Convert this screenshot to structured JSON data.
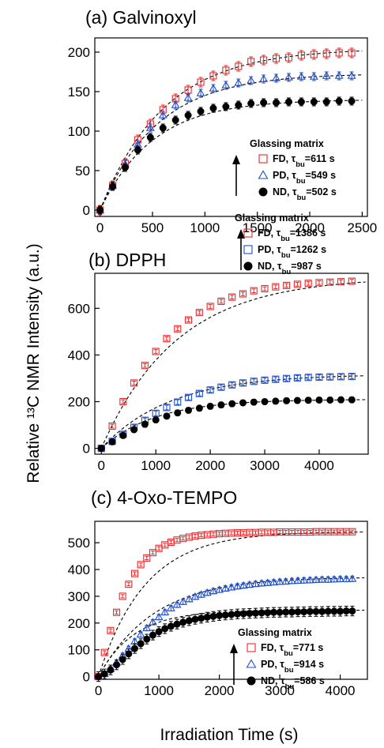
{
  "figure": {
    "ylabel": "Relative ¹³C NMR Intensity (a.u.)",
    "xlabel": "Irradiation Time (s)"
  },
  "colors": {
    "FD": "#e8292b",
    "PD": "#1f4fc9",
    "ND": "#000000",
    "fit": "#000000"
  },
  "chart_data": [
    {
      "type": "scatter",
      "title": "(a) Galvinoxyl",
      "xlim": [
        -50,
        2550
      ],
      "ylim": [
        -8,
        218
      ],
      "xticks": [
        0,
        500,
        1000,
        1500,
        2000,
        2500
      ],
      "yticks": [
        0,
        50,
        100,
        150,
        200
      ],
      "legend_title": "Glassing matrix",
      "series": [
        {
          "name": "FD",
          "tau": "611",
          "marker": "square-open",
          "x": [
            0,
            120,
            240,
            360,
            480,
            600,
            720,
            840,
            960,
            1080,
            1200,
            1320,
            1440,
            1560,
            1680,
            1800,
            1920,
            2040,
            2160,
            2280,
            2400
          ],
          "y": [
            0,
            31,
            59,
            89,
            109,
            127,
            141,
            152,
            162,
            170,
            177,
            182,
            188,
            190,
            192,
            193,
            196,
            197,
            198,
            199,
            199
          ],
          "err": 6,
          "fit": [
            205,
            611
          ]
        },
        {
          "name": "PD",
          "tau": "549",
          "marker": "triangle-open",
          "x": [
            0,
            120,
            240,
            360,
            480,
            600,
            720,
            840,
            960,
            1080,
            1200,
            1320,
            1440,
            1560,
            1680,
            1800,
            1920,
            2040,
            2160,
            2280,
            2400
          ],
          "y": [
            0,
            31,
            58,
            83,
            104,
            120,
            133,
            142,
            148,
            154,
            158,
            161,
            164,
            166,
            167,
            168,
            169,
            169,
            170,
            170,
            170
          ],
          "err": 5,
          "fit": [
            173,
            549
          ]
        },
        {
          "name": "ND",
          "tau": "502",
          "marker": "circle-filled",
          "x": [
            0,
            120,
            240,
            360,
            480,
            600,
            720,
            840,
            960,
            1080,
            1200,
            1320,
            1440,
            1560,
            1680,
            1800,
            1920,
            2040,
            2160,
            2280,
            2400
          ],
          "y": [
            0,
            30,
            54,
            76,
            92,
            104,
            114,
            120,
            125,
            129,
            131,
            133,
            135,
            136,
            136,
            137,
            137,
            137,
            137,
            138,
            138
          ],
          "err": 5,
          "fit": [
            140,
            502
          ]
        }
      ]
    },
    {
      "type": "scatter",
      "title": "(b) DPPH",
      "xlim": [
        -120,
        4900
      ],
      "ylim": [
        -25,
        750
      ],
      "xticks": [
        0,
        1000,
        2000,
        3000,
        4000
      ],
      "yticks": [
        0,
        200,
        400,
        600
      ],
      "legend_title": "Glassing matrix",
      "series": [
        {
          "name": "FD",
          "tau": "1386",
          "marker": "square-open",
          "x": [
            0,
            200,
            400,
            600,
            800,
            1000,
            1200,
            1400,
            1600,
            1800,
            2000,
            2200,
            2400,
            2600,
            2800,
            3000,
            3200,
            3400,
            3600,
            3800,
            4000,
            4200,
            4400,
            4600
          ],
          "y": [
            0,
            95,
            200,
            280,
            355,
            415,
            470,
            512,
            550,
            582,
            608,
            630,
            648,
            662,
            675,
            684,
            692,
            698,
            703,
            707,
            710,
            712,
            714,
            716
          ],
          "err": 8,
          "fit": [
            735,
            1386
          ]
        },
        {
          "name": "PD",
          "tau": "1262",
          "marker": "square-open",
          "x": [
            0,
            200,
            400,
            600,
            800,
            1000,
            1200,
            1400,
            1600,
            1800,
            2000,
            2200,
            2400,
            2600,
            2800,
            3000,
            3200,
            3400,
            3600,
            3800,
            4000,
            4200,
            4400,
            4600
          ],
          "y": [
            0,
            30,
            60,
            90,
            120,
            150,
            175,
            198,
            218,
            235,
            250,
            262,
            272,
            280,
            287,
            292,
            296,
            299,
            302,
            304,
            305,
            306,
            307,
            308
          ],
          "err": 10,
          "fit": [
            318,
            1262
          ]
        },
        {
          "name": "ND",
          "tau": "987",
          "marker": "circle-filled",
          "x": [
            0,
            200,
            400,
            600,
            800,
            1000,
            1200,
            1400,
            1600,
            1800,
            2000,
            2200,
            2400,
            2600,
            2800,
            3000,
            3200,
            3400,
            3600,
            3800,
            4000,
            4200,
            4400,
            4600
          ],
          "y": [
            0,
            28,
            55,
            80,
            103,
            122,
            138,
            152,
            163,
            172,
            180,
            186,
            191,
            195,
            198,
            200,
            202,
            204,
            205,
            206,
            207,
            207,
            208,
            208
          ],
          "err": 12,
          "fit": [
            210,
            987
          ]
        }
      ]
    },
    {
      "type": "scatter",
      "title": "(c) 4-Oxo-TEMPO",
      "xlim": [
        -60,
        4450
      ],
      "ylim": [
        -10,
        580
      ],
      "xticks": [
        0,
        1000,
        2000,
        3000,
        4000
      ],
      "yticks": [
        0,
        100,
        200,
        300,
        400,
        500
      ],
      "legend_title": "Glassing matrix",
      "series": [
        {
          "name": "FD",
          "tau": "771",
          "marker": "square-open",
          "x": [
            0,
            100,
            200,
            300,
            400,
            500,
            600,
            700,
            800,
            900,
            1000,
            1100,
            1200,
            1300,
            1400,
            1500,
            1600,
            1700,
            1800,
            1900,
            2000,
            2100,
            2200,
            2300,
            2400,
            2500,
            2600,
            2700,
            2800,
            2900,
            3000,
            3100,
            3200,
            3300,
            3400,
            3500,
            3600,
            3700,
            3800,
            3900,
            4000,
            4100,
            4200
          ],
          "y": [
            0,
            90,
            172,
            240,
            300,
            345,
            385,
            418,
            443,
            463,
            479,
            492,
            502,
            510,
            516,
            521,
            525,
            528,
            530,
            532,
            534,
            535,
            536,
            537,
            537,
            538,
            538,
            539,
            539,
            539,
            540,
            540,
            540,
            540,
            540,
            540,
            541,
            541,
            541,
            541,
            541,
            541,
            541
          ],
          "err": 6,
          "fit": [
            542,
            771
          ]
        },
        {
          "name": "PD",
          "tau": "914",
          "marker": "triangle-open",
          "x": [
            0,
            100,
            200,
            300,
            400,
            500,
            600,
            700,
            800,
            900,
            1000,
            1100,
            1200,
            1300,
            1400,
            1500,
            1600,
            1700,
            1800,
            1900,
            2000,
            2100,
            2200,
            2300,
            2400,
            2500,
            2600,
            2700,
            2800,
            2900,
            3000,
            3100,
            3200,
            3300,
            3400,
            3500,
            3600,
            3700,
            3800,
            3900,
            4000,
            4100,
            4200
          ],
          "y": [
            0,
            10,
            28,
            52,
            78,
            104,
            131,
            157,
            181,
            203,
            222,
            240,
            255,
            268,
            279,
            289,
            298,
            306,
            313,
            319,
            324,
            329,
            333,
            337,
            340,
            343,
            346,
            348,
            350,
            352,
            354,
            355,
            357,
            358,
            359,
            360,
            361,
            362,
            362,
            363,
            364,
            364,
            365
          ],
          "err": 10,
          "fit": [
            372,
            914
          ]
        },
        {
          "name": "ND",
          "tau": "586",
          "marker": "circle-filled",
          "x": [
            0,
            100,
            200,
            300,
            400,
            500,
            600,
            700,
            800,
            900,
            1000,
            1100,
            1200,
            1300,
            1400,
            1500,
            1600,
            1700,
            1800,
            1900,
            2000,
            2100,
            2200,
            2300,
            2400,
            2500,
            2600,
            2700,
            2800,
            2900,
            3000,
            3100,
            3200,
            3300,
            3400,
            3500,
            3600,
            3700,
            3800,
            3900,
            4000,
            4100,
            4200
          ],
          "y": [
            0,
            10,
            25,
            44,
            64,
            85,
            105,
            123,
            140,
            155,
            168,
            179,
            188,
            196,
            203,
            209,
            214,
            218,
            222,
            225,
            228,
            230,
            232,
            234,
            235,
            236,
            237,
            238,
            239,
            240,
            240,
            241,
            241,
            242,
            242,
            243,
            243,
            243,
            244,
            244,
            244,
            245,
            245
          ],
          "err": 18,
          "fit": [
            248,
            586
          ]
        }
      ]
    }
  ]
}
